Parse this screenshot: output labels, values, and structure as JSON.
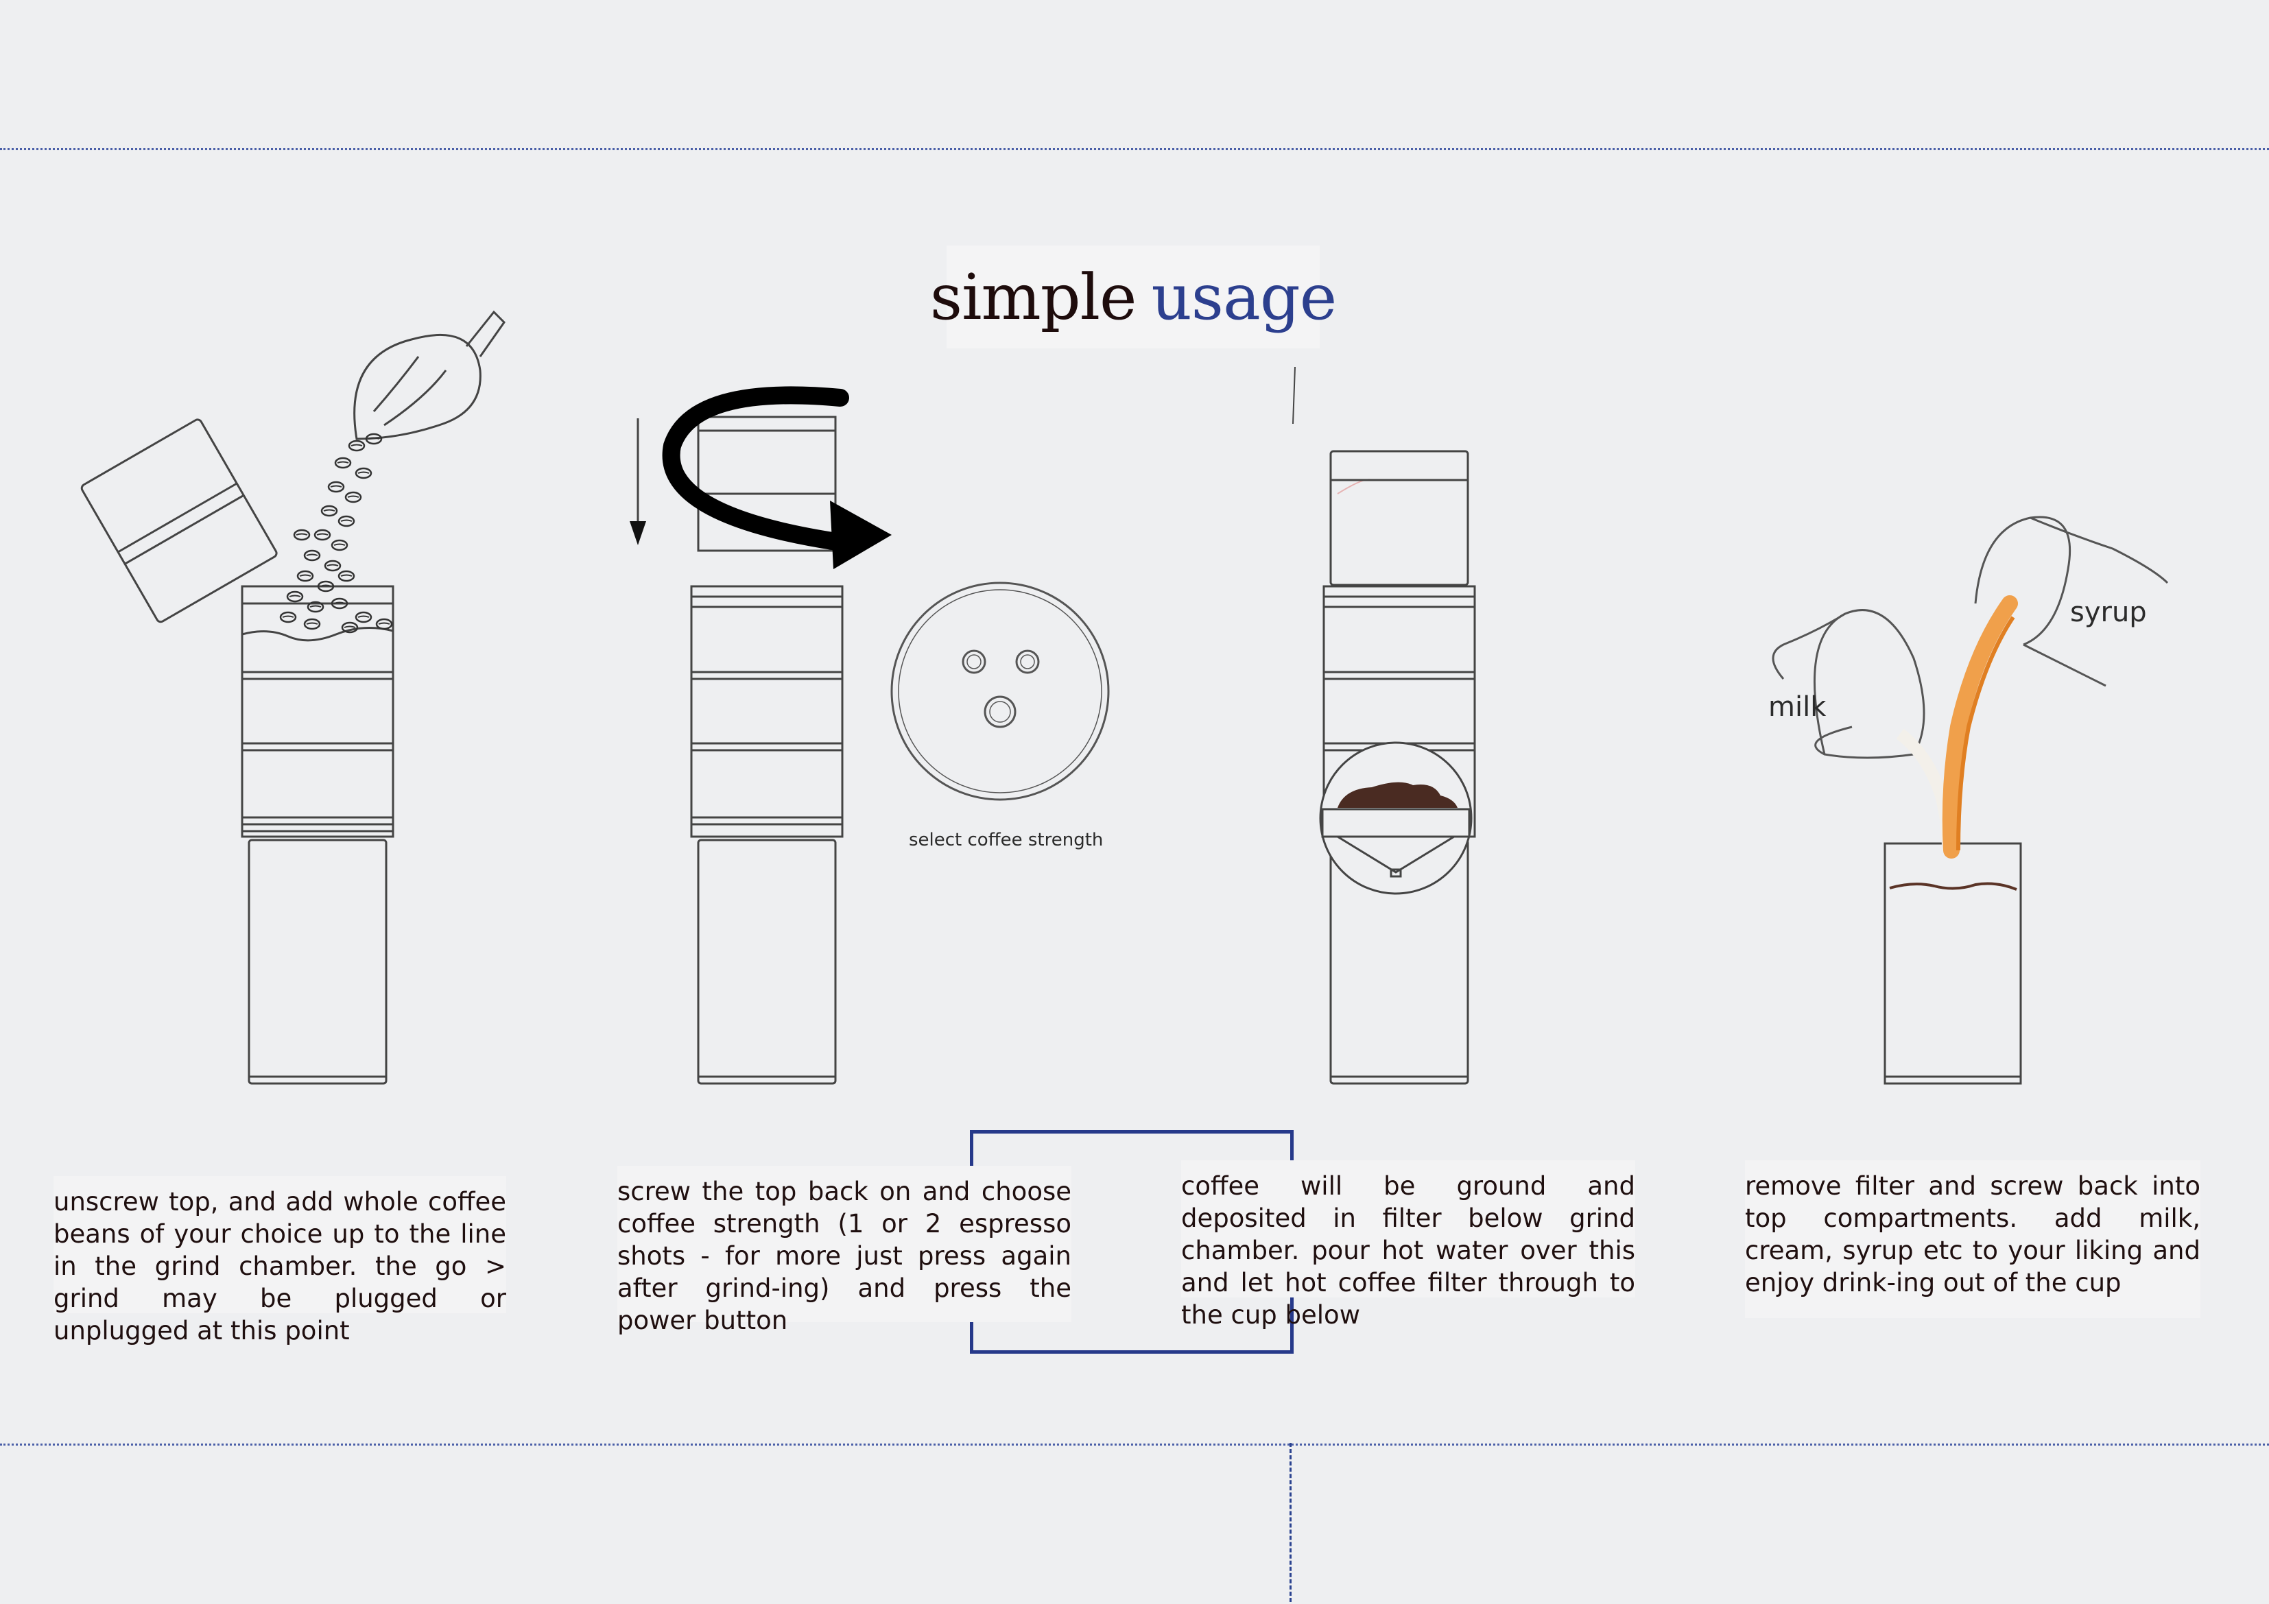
{
  "title": {
    "word1": "simple",
    "word2": "usage"
  },
  "colors": {
    "background": "#eeeff1",
    "title_dark": "#1e0c0c",
    "title_blue": "#2c3f8e",
    "frame_blue": "#26398a",
    "guide_blue": "#4a5fa8",
    "coffee_orange": "#f0a04b",
    "coffee_brown": "#5a3326"
  },
  "steps": [
    {
      "text": "unscrew top, and add whole coffee beans of your choice up to the line in the grind chamber. the go > grind may be plugged or unplugged at this point"
    },
    {
      "text": "screw the top back on and choose coffee strength (1 or 2 espresso shots - for more just press again after grind-ing) and press the power button",
      "caption": "select coffee strength"
    },
    {
      "text": "coffee will be ground and deposited in filter below grind chamber. pour hot water over this and let hot coffee filter through to the cup below"
    },
    {
      "text": "remove filter and screw back into top compartments. add milk, cream, syrup etc to your liking and enjoy drink-ing out of the cup",
      "labels": {
        "milk": "milk",
        "syrup": "syrup"
      }
    }
  ]
}
